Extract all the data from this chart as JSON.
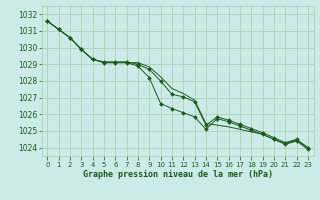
{
  "title": "Graphe pression niveau de la mer (hPa)",
  "background_color": "#cceae7",
  "grid_color": "#aaccaa",
  "line_color": "#1a5c1a",
  "text_color": "#1a5c1a",
  "xlim": [
    -0.5,
    23.5
  ],
  "ylim": [
    1023.5,
    1032.5
  ],
  "yticks": [
    1024,
    1025,
    1026,
    1027,
    1028,
    1029,
    1030,
    1031,
    1032
  ],
  "xticks": [
    0,
    1,
    2,
    3,
    4,
    5,
    6,
    7,
    8,
    9,
    10,
    11,
    12,
    13,
    14,
    15,
    16,
    17,
    18,
    19,
    20,
    21,
    22,
    23
  ],
  "line1": [
    1031.6,
    1031.1,
    1030.6,
    1029.9,
    1029.3,
    1029.1,
    1029.1,
    1029.1,
    1029.1,
    1028.85,
    1028.25,
    1027.55,
    1027.25,
    1026.85,
    1025.45,
    1025.35,
    1025.25,
    1025.1,
    1024.95,
    1024.8,
    1024.5,
    1024.25,
    1024.45,
    1024.0
  ],
  "line2": [
    1031.6,
    1031.1,
    1030.6,
    1029.9,
    1029.3,
    1029.15,
    1029.15,
    1029.15,
    1029.0,
    1028.7,
    1028.0,
    1027.2,
    1027.05,
    1026.75,
    1025.35,
    1025.85,
    1025.65,
    1025.4,
    1025.15,
    1024.9,
    1024.6,
    1024.3,
    1024.5,
    1024.0
  ],
  "line3": [
    1031.6,
    1031.1,
    1030.6,
    1029.9,
    1029.3,
    1029.1,
    1029.1,
    1029.1,
    1028.9,
    1028.2,
    1026.65,
    1026.35,
    1026.1,
    1025.85,
    1025.1,
    1025.75,
    1025.55,
    1025.3,
    1025.05,
    1024.8,
    1024.5,
    1024.2,
    1024.4,
    1023.9
  ]
}
